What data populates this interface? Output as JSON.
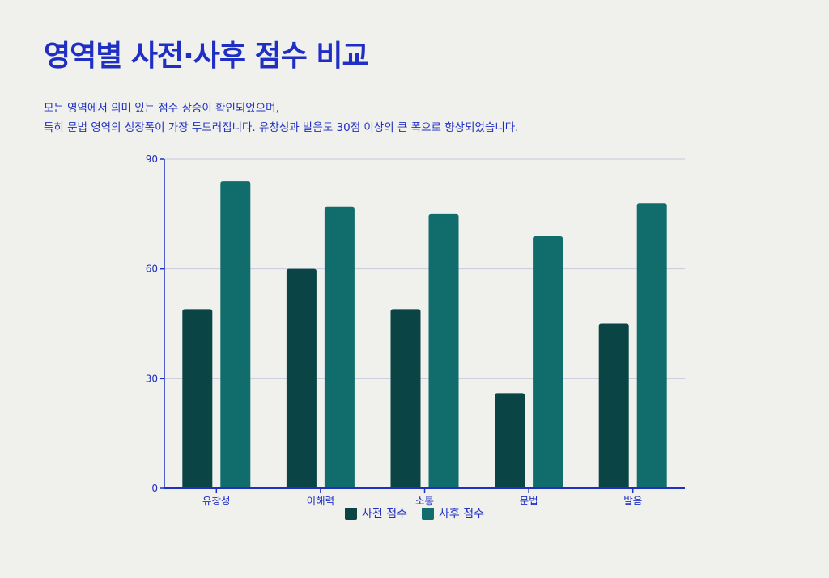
{
  "title": "영역별 사전·사후 점수 비교",
  "subtitle": [
    "모든 영역에서 의미 있는 점수 상승이 확인되었으며,",
    "특히 문법 영역의 성장폭이 가장 두드러집니다. 유창성과 발음도 30점 이상의 큰 폭으로 향상되었습니다."
  ],
  "chart_data": {
    "type": "bar",
    "categories": [
      "유창성",
      "이해력",
      "소통",
      "문법",
      "발음"
    ],
    "series": [
      {
        "name": "사전 점수",
        "values": [
          49,
          60,
          49,
          26,
          45
        ],
        "color": "#0b4445"
      },
      {
        "name": "사후 점수",
        "values": [
          84,
          77,
          75,
          69,
          78
        ],
        "color": "#116d6c"
      }
    ],
    "ylim": [
      0,
      90
    ],
    "yticks": [
      "0",
      "30",
      "60",
      "90"
    ],
    "grid": true,
    "legend": "bottom",
    "axis_color": "#1f2fc4"
  }
}
